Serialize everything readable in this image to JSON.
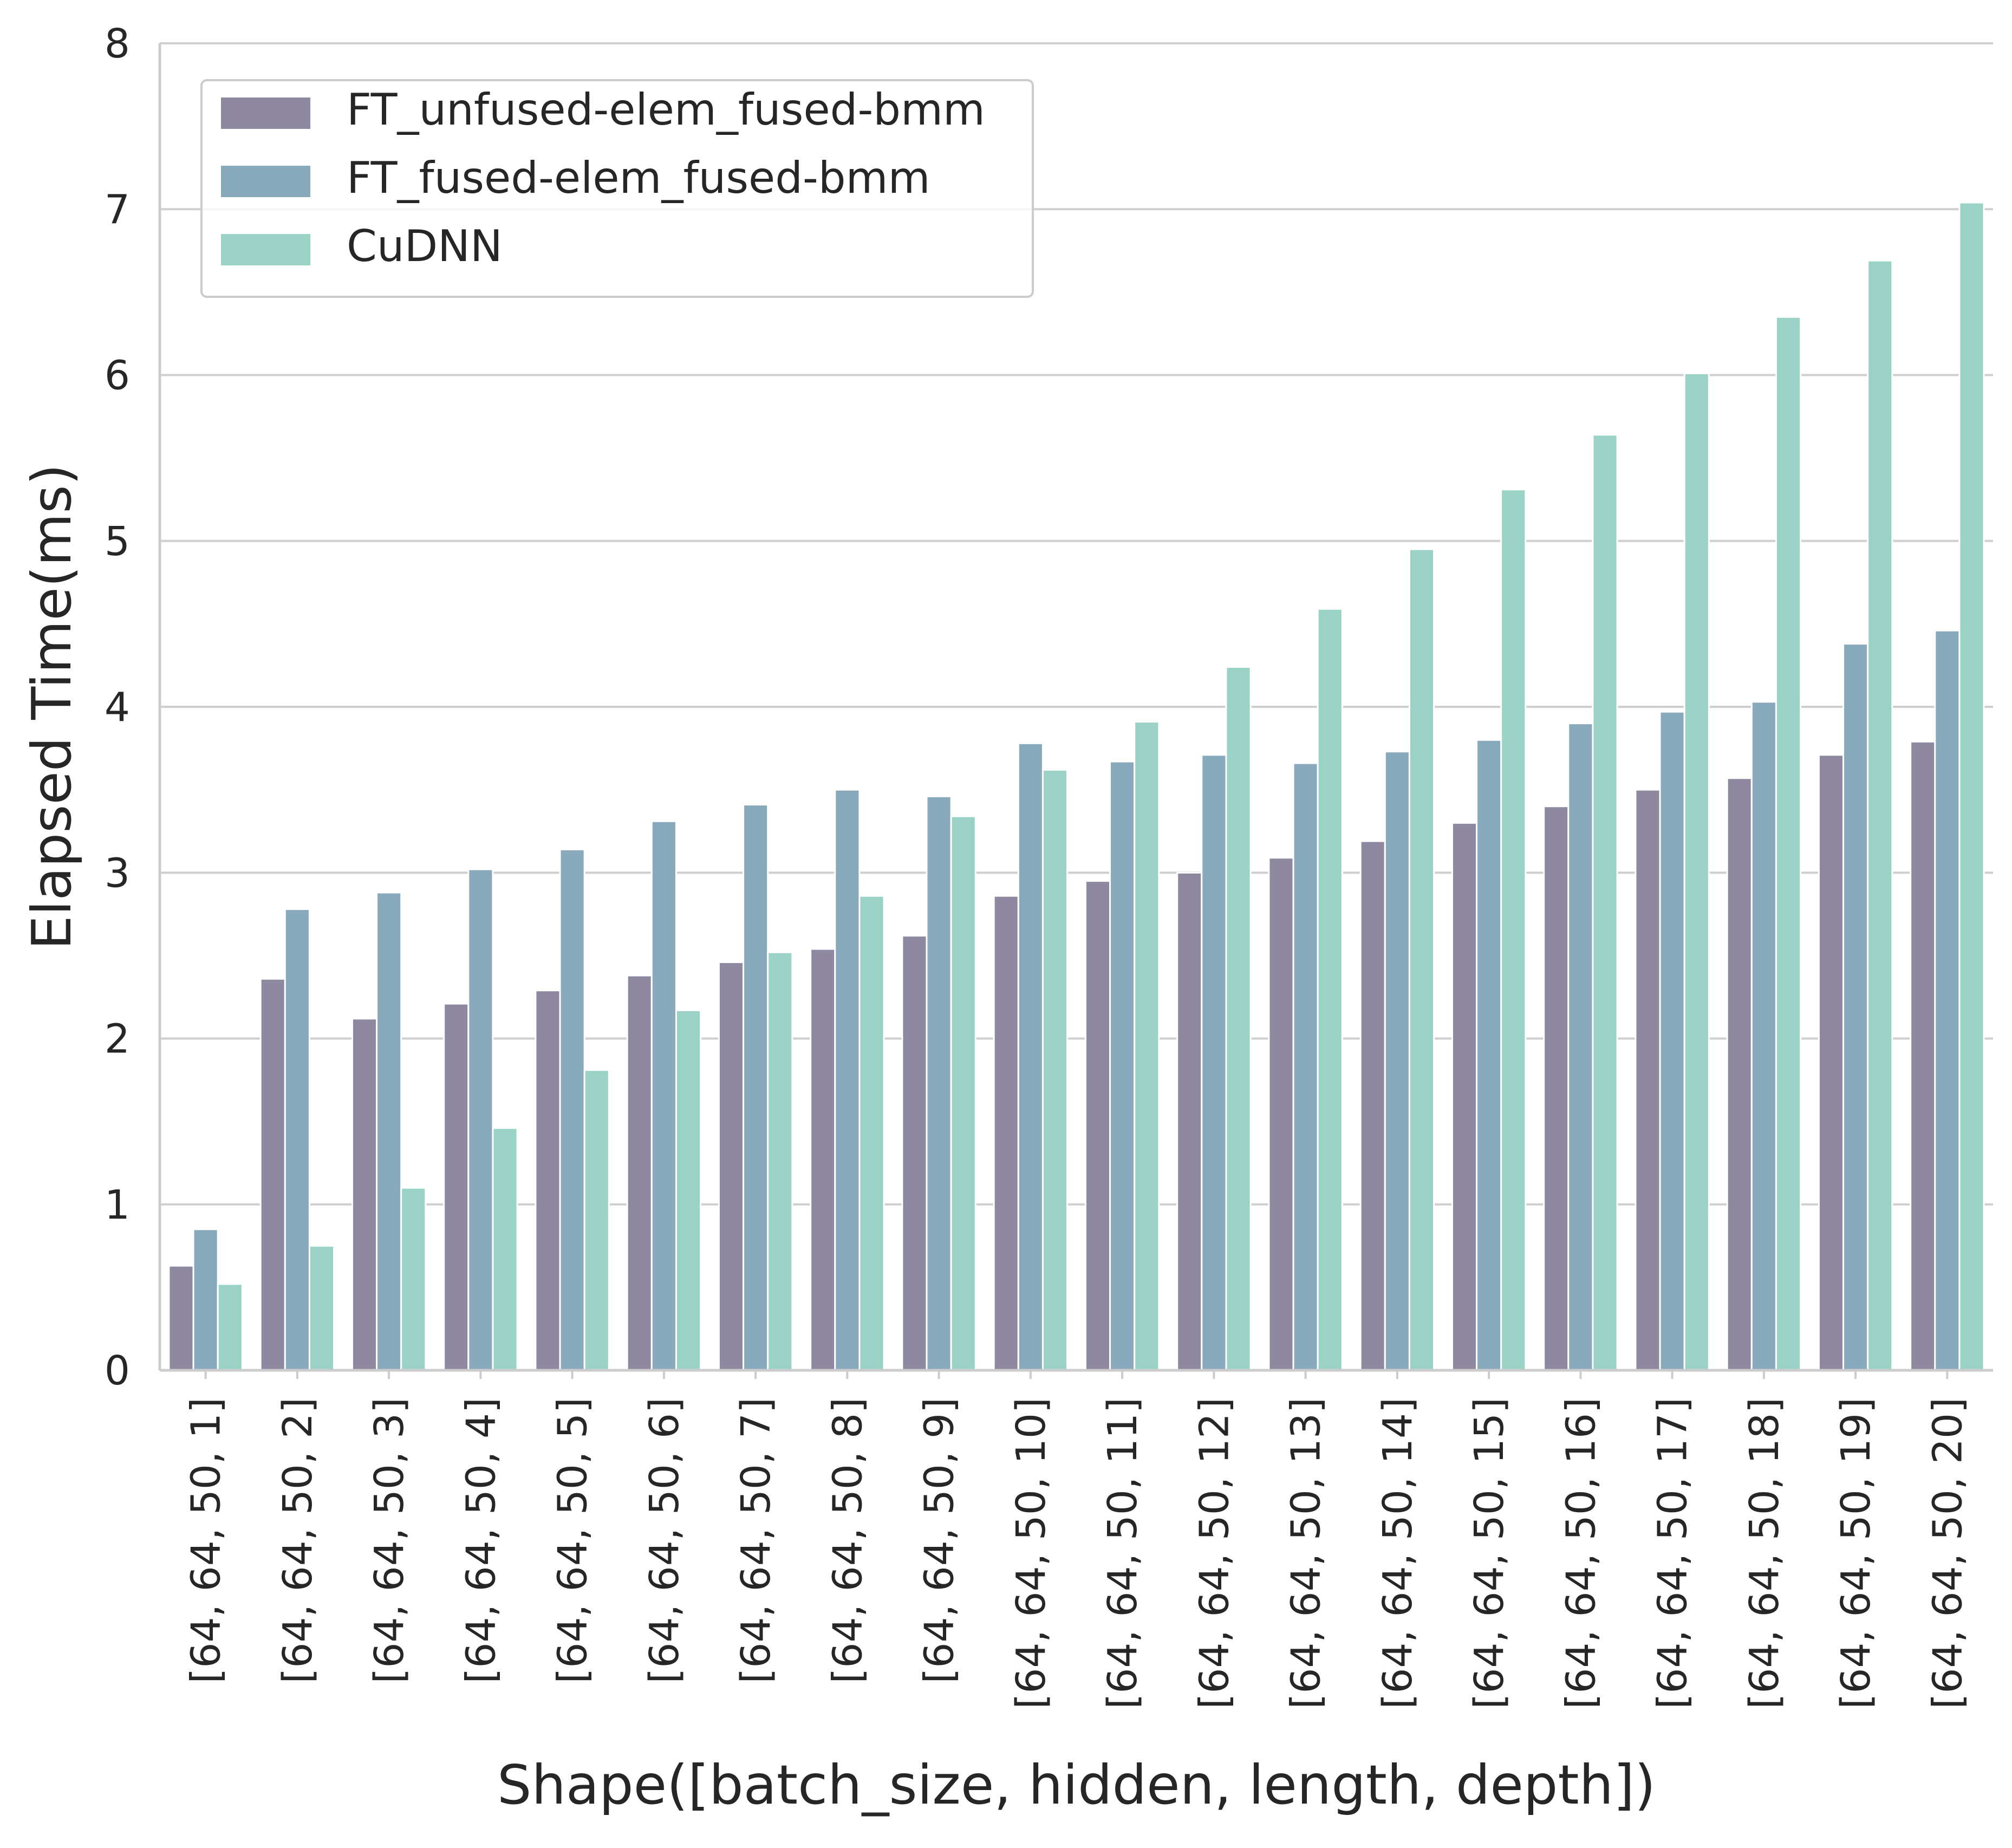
{
  "chart_data": {
    "type": "bar",
    "title": "",
    "xlabel": "Shape([batch_size, hidden, length, depth])",
    "ylabel": "Elapsed Time(ms)",
    "ylim": [
      0,
      8
    ],
    "yticks": [
      0,
      1,
      2,
      3,
      4,
      5,
      6,
      7,
      8
    ],
    "grid": "horizontal",
    "legend_position": "top-left",
    "categories": [
      "[64, 64, 50, 1]",
      "[64, 64, 50, 2]",
      "[64, 64, 50, 3]",
      "[64, 64, 50, 4]",
      "[64, 64, 50, 5]",
      "[64, 64, 50, 6]",
      "[64, 64, 50, 7]",
      "[64, 64, 50, 8]",
      "[64, 64, 50, 9]",
      "[64, 64, 50, 10]",
      "[64, 64, 50, 11]",
      "[64, 64, 50, 12]",
      "[64, 64, 50, 13]",
      "[64, 64, 50, 14]",
      "[64, 64, 50, 15]",
      "[64, 64, 50, 16]",
      "[64, 64, 50, 17]",
      "[64, 64, 50, 18]",
      "[64, 64, 50, 19]",
      "[64, 64, 50, 20]"
    ],
    "series": [
      {
        "name": "FT_unfused-elem_fused-bmm",
        "color": "#8e88a0",
        "values": [
          0.63,
          2.36,
          2.12,
          2.21,
          2.29,
          2.38,
          2.46,
          2.54,
          2.62,
          2.86,
          2.95,
          3.0,
          3.09,
          3.19,
          3.3,
          3.4,
          3.5,
          3.57,
          3.71,
          3.79
        ]
      },
      {
        "name": "FT_fused-elem_fused-bmm",
        "color": "#89a9bc",
        "values": [
          0.85,
          2.78,
          2.88,
          3.02,
          3.14,
          3.31,
          3.41,
          3.5,
          3.46,
          3.78,
          3.67,
          3.71,
          3.66,
          3.73,
          3.8,
          3.9,
          3.97,
          4.03,
          4.38,
          4.46
        ]
      },
      {
        "name": "CuDNN",
        "color": "#9bd2c6",
        "values": [
          0.52,
          0.75,
          1.1,
          1.46,
          1.81,
          2.17,
          2.52,
          2.86,
          3.34,
          3.62,
          3.91,
          4.24,
          4.59,
          4.95,
          5.31,
          5.64,
          6.01,
          6.35,
          6.69,
          7.04
        ]
      }
    ]
  }
}
